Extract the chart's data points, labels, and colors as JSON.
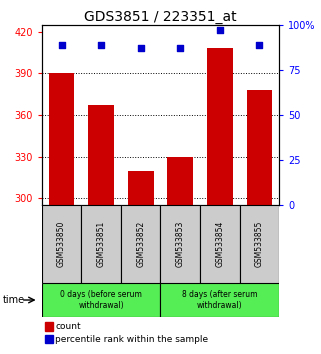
{
  "title": "GDS3851 / 223351_at",
  "samples": [
    "GSM533850",
    "GSM533851",
    "GSM533852",
    "GSM533853",
    "GSM533854",
    "GSM533855"
  ],
  "bar_values": [
    390,
    367,
    320,
    330,
    408,
    378
  ],
  "percentile_values": [
    89,
    89,
    87,
    87,
    97,
    89
  ],
  "bar_color": "#cc0000",
  "percentile_color": "#0000cc",
  "ylim_left": [
    295,
    425
  ],
  "ylim_right": [
    0,
    100
  ],
  "yticks_left": [
    300,
    330,
    360,
    390,
    420
  ],
  "yticks_right": [
    0,
    25,
    50,
    75,
    100
  ],
  "ytick_labels_right": [
    "0",
    "25",
    "50",
    "75",
    "100%"
  ],
  "group1_label": "0 days (before serum\nwithdrawal)",
  "group2_label": "8 days (after serum\nwithdrawal)",
  "group1_indices": [
    0,
    1,
    2
  ],
  "group2_indices": [
    3,
    4,
    5
  ],
  "legend_count_label": "count",
  "legend_percentile_label": "percentile rank within the sample",
  "time_label": "time",
  "background_color": "#ffffff",
  "plot_bg_color": "#ffffff",
  "group_bg_color": "#55ee55",
  "sample_bg_color": "#cccccc",
  "title_fontsize": 10,
  "tick_fontsize": 7,
  "bar_width": 0.65
}
